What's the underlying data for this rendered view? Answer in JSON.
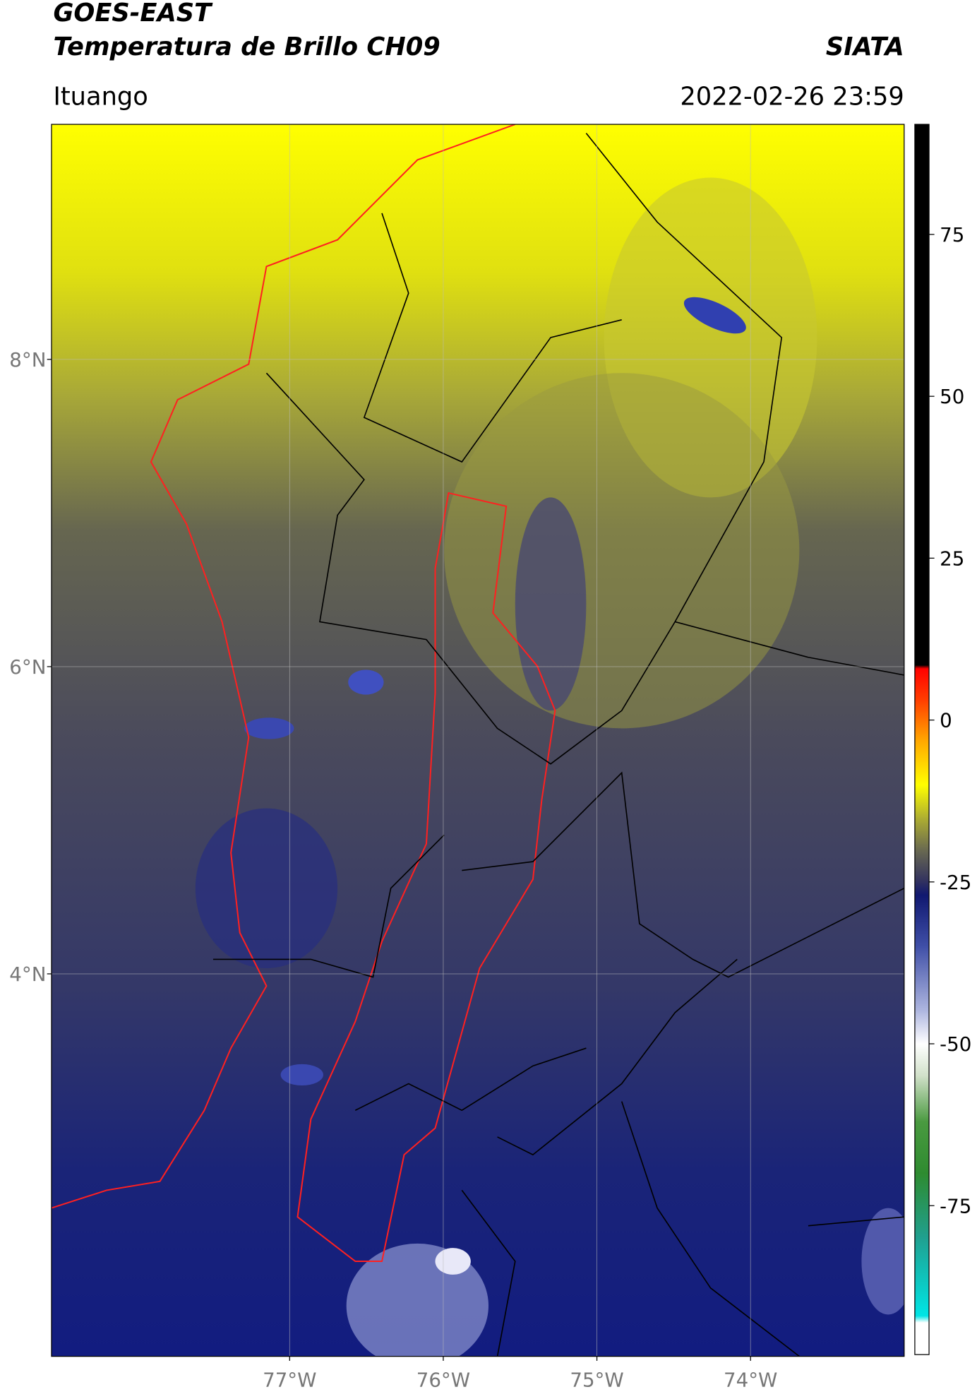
{
  "header": {
    "title": "GOES-EAST",
    "subtitle": "Temperatura de Brillo CH09",
    "source": "SIATA",
    "region": "Ituango",
    "datetime": "2022-02-26 23:59"
  },
  "map": {
    "xlim": [
      -78.55,
      -73.0
    ],
    "ylim": [
      1.51,
      9.53
    ],
    "grid": true,
    "xticks": [
      {
        "value": -77,
        "label": "77°W"
      },
      {
        "value": -76,
        "label": "76°W"
      },
      {
        "value": -75,
        "label": "75°W"
      },
      {
        "value": -74,
        "label": "74°W"
      }
    ],
    "yticks": [
      {
        "value": 8,
        "label": "8°N"
      },
      {
        "value": 6,
        "label": "6°N"
      },
      {
        "value": 4,
        "label": "4°N"
      }
    ]
  },
  "colorbar": {
    "lim": [
      -98,
      92
    ],
    "ticks": [
      75,
      50,
      25,
      0,
      -25,
      -50,
      -75
    ],
    "stops": [
      {
        "value": -98,
        "color": "#ffffff"
      },
      {
        "value": -93,
        "color": "#ffffff"
      },
      {
        "value": -92,
        "color": "#00e5e5"
      },
      {
        "value": -80,
        "color": "#20a090"
      },
      {
        "value": -70,
        "color": "#2e8b30"
      },
      {
        "value": -62,
        "color": "#4a9a40"
      },
      {
        "value": -55,
        "color": "#d0e0c8"
      },
      {
        "value": -50,
        "color": "#ffffff"
      },
      {
        "value": -45,
        "color": "#b0b8e0"
      },
      {
        "value": -35,
        "color": "#4050a8"
      },
      {
        "value": -27,
        "color": "#101870"
      },
      {
        "value": -25,
        "color": "#303060"
      },
      {
        "value": -20,
        "color": "#6a6a50"
      },
      {
        "value": -15,
        "color": "#b0b030"
      },
      {
        "value": -10,
        "color": "#ffff00"
      },
      {
        "value": -3,
        "color": "#ffa500"
      },
      {
        "value": 3,
        "color": "#ff4000"
      },
      {
        "value": 8,
        "color": "#ff0000"
      },
      {
        "value": 8.5,
        "color": "#000000"
      },
      {
        "value": 92,
        "color": "#000000"
      }
    ]
  }
}
